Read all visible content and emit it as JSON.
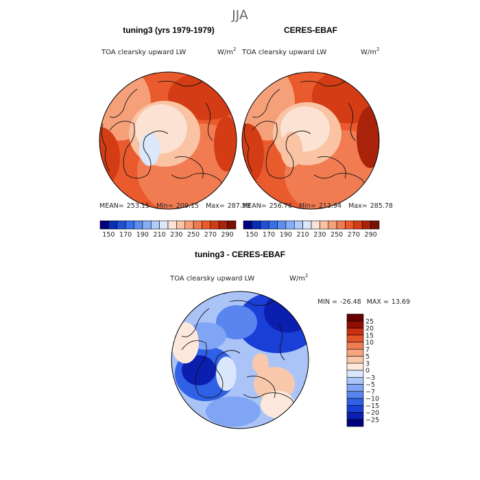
{
  "season": "JJA",
  "chart_data": [
    {
      "type": "heatmap",
      "projection": "north polar stereographic",
      "title": "tuning3 (yrs 1979-1979)",
      "variable": "TOA clearsky upward LW",
      "units": "W/m",
      "units_exp": "2",
      "stats": {
        "mean_label": "MEAN=",
        "mean": "253.15",
        "min_label": "Min=",
        "min": "209.15",
        "max_label": "Max=",
        "max": "287.38"
      },
      "colorbar": {
        "levels": [
          150,
          160,
          170,
          180,
          190,
          200,
          210,
          220,
          230,
          240,
          250,
          260,
          270,
          280,
          290
        ],
        "tick_labels": [
          "150",
          "170",
          "190",
          "210",
          "230",
          "250",
          "270",
          "290"
        ],
        "colors": [
          "#00007f",
          "#0a2db7",
          "#1f4fd9",
          "#3a6ee8",
          "#5b8ef0",
          "#86aef5",
          "#b0ccf9",
          "#dbe8fb",
          "#fbe2d2",
          "#f9c3a4",
          "#f6a07a",
          "#f27c52",
          "#e95a2d",
          "#d33c14",
          "#a82309",
          "#7a1003"
        ]
      },
      "summary": "polar cap (Arctic Ocean, Greenland) ~220-240; mid-latitude land and ocean 260-290"
    },
    {
      "type": "heatmap",
      "projection": "north polar stereographic",
      "title": "CERES-EBAF",
      "variable": "TOA clearsky upward LW",
      "units": "W/m",
      "units_exp": "2",
      "stats": {
        "mean_label": "MEAN=",
        "mean": "256.76",
        "min_label": "Min=",
        "min": "213.94",
        "max_label": "Max=",
        "max": "285.78"
      },
      "colorbar": {
        "levels": [
          150,
          160,
          170,
          180,
          190,
          200,
          210,
          220,
          230,
          240,
          250,
          260,
          270,
          280,
          290
        ],
        "tick_labels": [
          "150",
          "170",
          "190",
          "210",
          "230",
          "250",
          "270",
          "290"
        ],
        "colors": [
          "#00007f",
          "#0a2db7",
          "#1f4fd9",
          "#3a6ee8",
          "#5b8ef0",
          "#86aef5",
          "#b0ccf9",
          "#dbe8fb",
          "#fbe2d2",
          "#f9c3a4",
          "#f6a07a",
          "#f27c52",
          "#e95a2d",
          "#d33c14",
          "#a82309",
          "#7a1003"
        ]
      },
      "summary": "polar cap ~225-240; mid-latitudes 260-290"
    },
    {
      "type": "heatmap",
      "projection": "north polar stereographic",
      "title": "tuning3 - CERES-EBAF",
      "variable": "TOA clearsky upward LW",
      "units": "W/m",
      "units_exp": "2",
      "stats": {
        "min_label": "MIN =",
        "min": "-26.48",
        "max_label": "MAX =",
        "max": "13.69"
      },
      "colorbar": {
        "levels": [
          -25,
          -20,
          -15,
          -10,
          -7,
          -5,
          -3,
          0,
          3,
          5,
          7,
          10,
          15,
          20,
          25
        ],
        "tick_labels": [
          "25",
          "20",
          "15",
          "10",
          "7",
          "5",
          "3",
          "0",
          "−3",
          "−5",
          "−7",
          "−10",
          "−15",
          "−20",
          "−25"
        ],
        "colors": [
          "#00007f",
          "#0a1fb0",
          "#1a3fd6",
          "#3060e6",
          "#5a85ef",
          "#80a5f4",
          "#aac4f8",
          "#d9e6fb",
          "#fce8dc",
          "#f9c8ab",
          "#f6a57f",
          "#f07d53",
          "#e35427",
          "#c93010",
          "#8f0f03",
          "#660000"
        ]
      },
      "summary": "mostly negative over Eurasia and North America land (-10 to -25); slightly positive over parts of the Arctic Ocean and North Atlantic (3-10)"
    }
  ]
}
